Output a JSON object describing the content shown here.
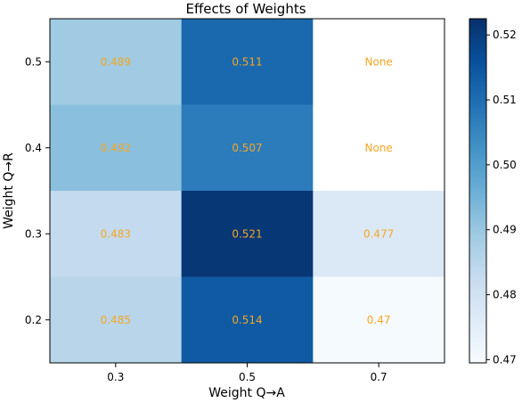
{
  "chart_data": {
    "type": "heatmap",
    "title": "Effects of Weights",
    "xlabel": "Weight Q→A",
    "ylabel": "Weight Q→R",
    "x_categories": [
      "0.3",
      "0.5",
      "0.7"
    ],
    "y_categories": [
      "0.5",
      "0.4",
      "0.3",
      "0.2"
    ],
    "values": [
      [
        0.489,
        0.511,
        null
      ],
      [
        0.492,
        0.507,
        null
      ],
      [
        0.483,
        0.521,
        0.477
      ],
      [
        0.485,
        0.514,
        0.47
      ]
    ],
    "cell_labels": [
      [
        "0.489",
        "0.511",
        "None"
      ],
      [
        "0.492",
        "0.507",
        "None"
      ],
      [
        "0.483",
        "0.521",
        "0.477"
      ],
      [
        "0.485",
        "0.514",
        "0.47"
      ]
    ],
    "colormap": "Blues",
    "null_color": "#ffffff",
    "label_color": "#f5a623",
    "colorbar": {
      "vmin": 0.4695,
      "vmax": 0.5225,
      "ticks": [
        0.47,
        0.48,
        0.49,
        0.5,
        0.51,
        0.52
      ],
      "tick_labels": [
        "0.47",
        "0.48",
        "0.49",
        "0.50",
        "0.51",
        "0.52"
      ],
      "placement": "right"
    }
  }
}
